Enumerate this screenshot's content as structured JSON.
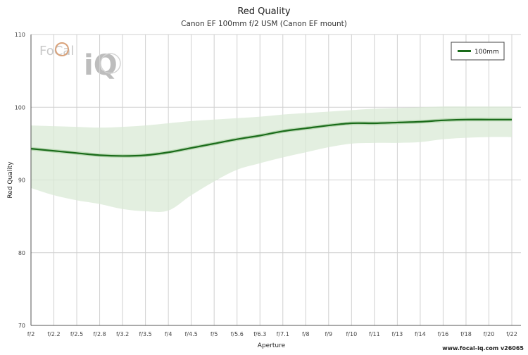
{
  "chart_data": {
    "type": "line",
    "title": "Red Quality",
    "subtitle": "Canon EF 100mm f/2 USM (Canon EF mount)",
    "xlabel": "Aperture",
    "ylabel": "Red Quality",
    "ylim": [
      70,
      110
    ],
    "yticks": [
      70,
      80,
      90,
      100,
      110
    ],
    "categories": [
      "f/2",
      "f/2.2",
      "f/2.5",
      "f/2.8",
      "f/3.2",
      "f/3.5",
      "f/4",
      "f/4.5",
      "f/5",
      "f/5.6",
      "f/6.3",
      "f/7.1",
      "f/8",
      "f/9",
      "f/10",
      "f/11",
      "f/13",
      "f/14",
      "f/16",
      "f/18",
      "f/20",
      "f/22"
    ],
    "grid": true,
    "legend_position": "top-right",
    "series": [
      {
        "name": "100mm",
        "color": "#1a6b1a",
        "values": [
          94.3,
          94.0,
          93.7,
          93.4,
          93.3,
          93.4,
          93.8,
          94.4,
          95.0,
          95.6,
          96.1,
          96.7,
          97.1,
          97.5,
          97.8,
          97.8,
          97.9,
          98.0,
          98.2,
          98.3,
          98.3,
          98.3
        ],
        "band_upper": [
          97.5,
          97.4,
          97.3,
          97.2,
          97.3,
          97.5,
          97.8,
          98.1,
          98.3,
          98.5,
          98.7,
          99.0,
          99.2,
          99.4,
          99.6,
          99.8,
          99.9,
          100.0,
          100.1,
          100.1,
          100.1,
          100.1
        ],
        "band_lower": [
          88.9,
          87.9,
          87.2,
          86.7,
          86.0,
          85.7,
          85.8,
          87.9,
          89.8,
          91.4,
          92.3,
          93.1,
          93.8,
          94.5,
          95.0,
          95.1,
          95.1,
          95.2,
          95.6,
          95.8,
          95.9,
          95.9
        ]
      }
    ]
  },
  "branding": {
    "logo_text": "FoCal",
    "logo_iq": "iQ",
    "footer": "www.focal-iq.com  v26065"
  }
}
